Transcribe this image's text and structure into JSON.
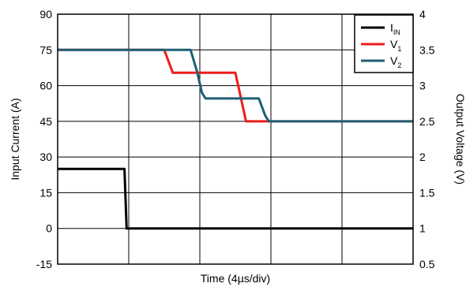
{
  "chart_data": {
    "type": "line",
    "xlabel": "Time (4µs/div)",
    "ylabel_left": "Input Current (A)",
    "ylabel_right": "Output Voltage (V)",
    "x_divisions": 5,
    "grid": true,
    "left_axis": {
      "min": -15,
      "max": 90,
      "ticks": [
        "-15",
        "0",
        "15",
        "30",
        "45",
        "60",
        "75",
        "90"
      ]
    },
    "right_axis": {
      "min": 0.5,
      "max": 4,
      "ticks": [
        "0.5",
        "1",
        "1.5",
        "2",
        "2.5",
        "3",
        "3.5",
        "4"
      ]
    },
    "legend_position": "top-right",
    "series": [
      {
        "name": "I",
        "name_subscript": "IN",
        "axis": "left",
        "color": "#000000",
        "x": [
          0,
          0.94,
          0.97,
          5
        ],
        "y": [
          25,
          25,
          0,
          0
        ]
      },
      {
        "name": "V",
        "name_subscript": "1",
        "axis": "right",
        "color": "#ee1c1c",
        "x": [
          0,
          1.5,
          1.62,
          2.5,
          2.65,
          2.68,
          5
        ],
        "y": [
          3.5,
          3.5,
          3.18,
          3.18,
          2.5,
          2.5,
          2.5
        ]
      },
      {
        "name": "V",
        "name_subscript": "2",
        "axis": "right",
        "color": "#1f5f74",
        "x": [
          0,
          1.87,
          1.96,
          2.03,
          2.08,
          2.83,
          2.92,
          2.97,
          5
        ],
        "y": [
          3.5,
          3.5,
          3.2,
          2.9,
          2.82,
          2.82,
          2.58,
          2.5,
          2.5
        ]
      }
    ]
  }
}
